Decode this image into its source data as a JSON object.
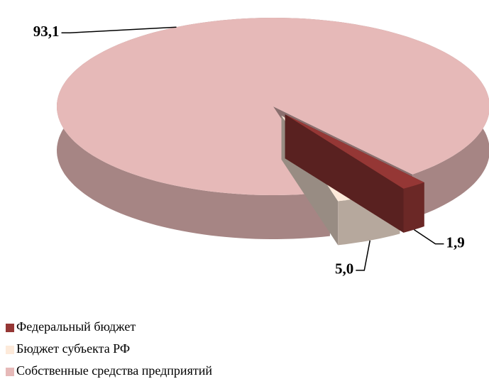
{
  "chart_data": {
    "type": "pie",
    "categories": [
      "Федеральный бюджет",
      "Бюджет субъекта РФ",
      "Собственные средства предприятий"
    ],
    "values": [
      1.9,
      5.0,
      93.1
    ],
    "value_labels": [
      "1,9",
      "5,0",
      "93,1"
    ],
    "colors": [
      "#953735",
      "#fdeada",
      "#e6b9b8"
    ]
  }
}
